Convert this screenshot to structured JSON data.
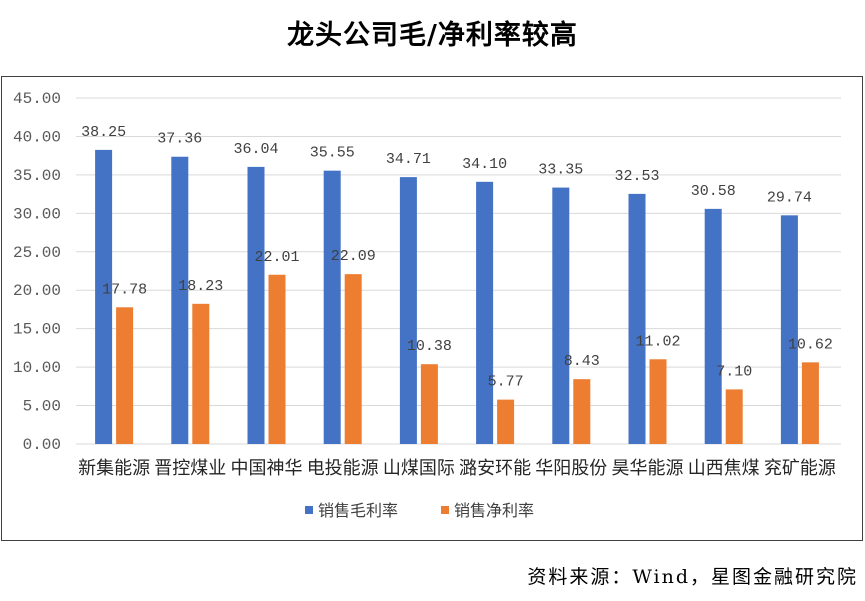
{
  "title": "龙头公司毛/净利率较高",
  "source": "资料来源：Wind，星图金融研究院",
  "chart_data": {
    "type": "bar",
    "categories": [
      "新集能源",
      "晋控煤业",
      "中国神华",
      "电投能源",
      "山煤国际",
      "潞安环能",
      "华阳股份",
      "昊华能源",
      "山西焦煤",
      "兖矿能源"
    ],
    "series": [
      {
        "name": "销售毛利率",
        "color": "#4472C4",
        "values": [
          38.25,
          37.36,
          36.04,
          35.55,
          34.71,
          34.1,
          33.35,
          32.53,
          30.58,
          29.74
        ]
      },
      {
        "name": "销售净利率",
        "color": "#ED7D31",
        "values": [
          17.78,
          18.23,
          22.01,
          22.09,
          10.38,
          5.77,
          8.43,
          11.02,
          7.1,
          10.62
        ]
      }
    ],
    "y_tick_labels": [
      "0.00",
      "5.00",
      "10.00",
      "15.00",
      "20.00",
      "25.00",
      "30.00",
      "35.00",
      "40.00",
      "45.00"
    ],
    "ylim": [
      0,
      45
    ],
    "grid": true,
    "data_labels": true,
    "legend_position": "bottom"
  }
}
